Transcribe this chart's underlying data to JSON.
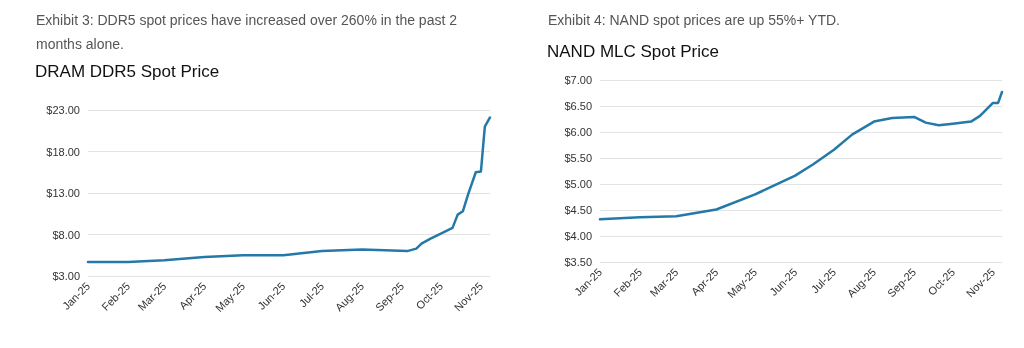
{
  "chart_data": [
    {
      "type": "line",
      "subtitle": "Exhibit 3:  DDR5 spot prices have increased over 260% in the past 2 months alone.",
      "title": "DRAM DDR5 Spot Price",
      "x": [
        "2025-01-01",
        "2025-02-01",
        "2025-03-01",
        "2025-04-01",
        "2025-05-01",
        "2025-06-01",
        "2025-07-01",
        "2025-08-01",
        "2025-09-05",
        "2025-09-12",
        "2025-09-16",
        "2025-09-23",
        "2025-10-01",
        "2025-10-10",
        "2025-10-14",
        "2025-10-18",
        "2025-10-22",
        "2025-10-28",
        "2025-11-01",
        "2025-11-04",
        "2025-11-08"
      ],
      "series": [
        {
          "color": "#2479a9",
          "values": [
            4.7,
            4.7,
            4.9,
            5.3,
            5.5,
            5.5,
            6.0,
            6.2,
            6.0,
            6.3,
            6.9,
            7.5,
            8.1,
            8.8,
            10.4,
            10.8,
            12.8,
            15.5,
            15.6,
            21.0,
            22.1
          ]
        }
      ],
      "xlim": [
        "2025-01-01",
        "2025-11-08"
      ],
      "xticks": [
        {
          "value": "2025-01-01",
          "label": "Jan-25"
        },
        {
          "value": "2025-02-01",
          "label": "Feb-25"
        },
        {
          "value": "2025-03-01",
          "label": "Mar-25"
        },
        {
          "value": "2025-04-01",
          "label": "Apr-25"
        },
        {
          "value": "2025-05-01",
          "label": "May-25"
        },
        {
          "value": "2025-06-01",
          "label": "Jun-25"
        },
        {
          "value": "2025-07-01",
          "label": "Jul-25"
        },
        {
          "value": "2025-08-01",
          "label": "Aug-25"
        },
        {
          "value": "2025-09-01",
          "label": "Sep-25"
        },
        {
          "value": "2025-10-01",
          "label": "Oct-25"
        },
        {
          "value": "2025-11-01",
          "label": "Nov-25"
        }
      ],
      "ylim": [
        3,
        23
      ],
      "yticks": [
        {
          "value": 3,
          "label": "$3.00"
        },
        {
          "value": 8,
          "label": "$8.00"
        },
        {
          "value": 13,
          "label": "$13.00"
        },
        {
          "value": 18,
          "label": "$18.00"
        },
        {
          "value": 23,
          "label": "$23.00"
        }
      ],
      "grid": "y",
      "marker": "none",
      "line_style": "solid"
    },
    {
      "type": "line",
      "subtitle": "Exhibit 4:  NAND spot prices are up 55%+ YTD.",
      "title": "NAND MLC Spot Price",
      "x": [
        "2025-01-01",
        "2025-02-01",
        "2025-03-01",
        "2025-04-01",
        "2025-05-01",
        "2025-06-01",
        "2025-06-15",
        "2025-07-01",
        "2025-07-15",
        "2025-08-01",
        "2025-08-15",
        "2025-09-01",
        "2025-09-10",
        "2025-09-20",
        "2025-10-01",
        "2025-10-15",
        "2025-10-22",
        "2025-11-01",
        "2025-11-05",
        "2025-11-08"
      ],
      "series": [
        {
          "color": "#2479a9",
          "values": [
            4.32,
            4.36,
            4.38,
            4.51,
            4.8,
            5.16,
            5.38,
            5.66,
            5.95,
            6.2,
            6.27,
            6.29,
            6.18,
            6.13,
            6.16,
            6.2,
            6.31,
            6.56,
            6.56,
            6.77
          ]
        }
      ],
      "xlim": [
        "2025-01-01",
        "2025-11-08"
      ],
      "xticks": [
        {
          "value": "2025-01-01",
          "label": "Jan-25"
        },
        {
          "value": "2025-02-01",
          "label": "Feb-25"
        },
        {
          "value": "2025-03-01",
          "label": "Mar-25"
        },
        {
          "value": "2025-04-01",
          "label": "Apr-25"
        },
        {
          "value": "2025-05-01",
          "label": "May-25"
        },
        {
          "value": "2025-06-01",
          "label": "Jun-25"
        },
        {
          "value": "2025-07-01",
          "label": "Jul-25"
        },
        {
          "value": "2025-08-01",
          "label": "Aug-25"
        },
        {
          "value": "2025-09-01",
          "label": "Sep-25"
        },
        {
          "value": "2025-10-01",
          "label": "Oct-25"
        },
        {
          "value": "2025-11-01",
          "label": "Nov-25"
        }
      ],
      "ylim": [
        3.5,
        7
      ],
      "yticks": [
        {
          "value": 3.5,
          "label": "$3.50"
        },
        {
          "value": 4,
          "label": "$4.00"
        },
        {
          "value": 4.5,
          "label": "$4.50"
        },
        {
          "value": 5,
          "label": "$5.00"
        },
        {
          "value": 5.5,
          "label": "$5.50"
        },
        {
          "value": 6,
          "label": "$6.00"
        },
        {
          "value": 6.5,
          "label": "$6.50"
        },
        {
          "value": 7,
          "label": "$7.00"
        }
      ],
      "grid": "y",
      "marker": "none",
      "line_style": "solid"
    }
  ]
}
